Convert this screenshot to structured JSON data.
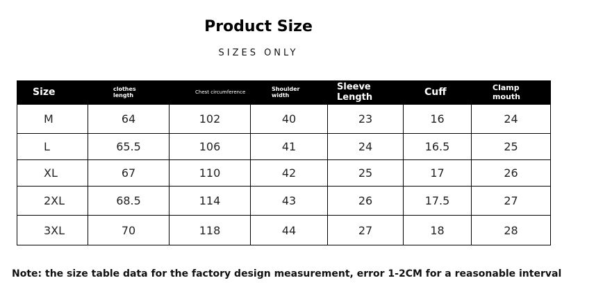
{
  "header": {
    "title": "Product Size",
    "subtitle": "SIZES ONLY"
  },
  "table": {
    "columns": [
      "Size",
      "clothes length",
      "Chest circumference",
      "Shoulder width",
      "Sleeve Length",
      "Cuff",
      "Clamp mouth"
    ],
    "rows": [
      [
        "M",
        64,
        102,
        40,
        23,
        16,
        24
      ],
      [
        "L",
        65.5,
        106,
        41,
        24,
        16.5,
        25
      ],
      [
        "XL",
        67,
        110,
        42,
        25,
        17,
        26
      ],
      [
        "2XL",
        68.5,
        114,
        43,
        26,
        17.5,
        27
      ],
      [
        "3XL",
        70,
        118,
        44,
        27,
        18,
        28
      ]
    ]
  },
  "note": "Note: the size table data for the factory design measurement, error 1-2CM for a reasonable interval"
}
